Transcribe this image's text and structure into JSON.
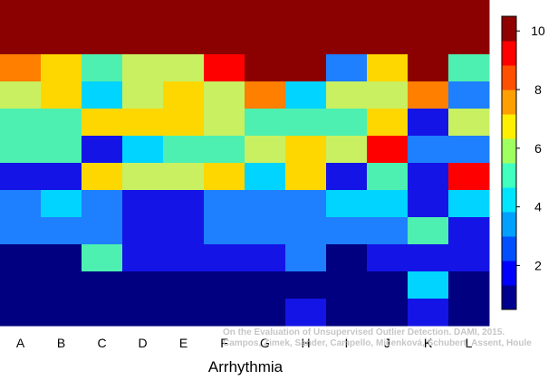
{
  "chart_data": {
    "type": "heatmap",
    "title": "",
    "xlabel": "Arrhythmia",
    "ylabel": "",
    "categories": [
      "A",
      "B",
      "C",
      "D",
      "E",
      "F",
      "G",
      "H",
      "I",
      "J",
      "K",
      "L"
    ],
    "row_count": 12,
    "colorbar": {
      "ticks": [
        2,
        4,
        6,
        8,
        10
      ],
      "range": [
        0.5,
        10.5
      ],
      "colors": [
        "#00008f",
        "#0000ff",
        "#0050ff",
        "#00a0ff",
        "#00e5ff",
        "#40ffbf",
        "#a0ff60",
        "#ffef00",
        "#ff9f00",
        "#ff5000",
        "#ff0000",
        "#8f0000"
      ]
    },
    "cell_colors": [
      [
        "#8b0000",
        "#8b0000",
        "#8b0000",
        "#8b0000",
        "#8b0000",
        "#8b0000",
        "#8b0000",
        "#8b0000",
        "#8b0000",
        "#8b0000",
        "#8b0000",
        "#8b0000"
      ],
      [
        "#8b0000",
        "#8b0000",
        "#8b0000",
        "#8b0000",
        "#8b0000",
        "#8b0000",
        "#8b0000",
        "#8b0000",
        "#8b0000",
        "#8b0000",
        "#8b0000",
        "#8b0000"
      ],
      [
        "#ff7f00",
        "#ffd700",
        "#4df0b0",
        "#c8f060",
        "#c8f060",
        "#ff0000",
        "#8b0000",
        "#8b0000",
        "#1e7fff",
        "#ffd700",
        "#8b0000",
        "#4df0b0"
      ],
      [
        "#c8f060",
        "#ffd700",
        "#00d4ff",
        "#c8f060",
        "#ffd700",
        "#c8f060",
        "#ff7f00",
        "#00d4ff",
        "#c8f060",
        "#c8f060",
        "#ff7f00",
        "#1e7fff"
      ],
      [
        "#4df0b0",
        "#4df0b0",
        "#ffd700",
        "#ffd700",
        "#ffd700",
        "#c8f060",
        "#4df0b0",
        "#4df0b0",
        "#4df0b0",
        "#ffd700",
        "#1414e6",
        "#c8f060"
      ],
      [
        "#4df0b0",
        "#4df0b0",
        "#1414e6",
        "#00d4ff",
        "#4df0b0",
        "#4df0b0",
        "#c8f060",
        "#ffd700",
        "#c8f060",
        "#ff0000",
        "#1e7fff",
        "#1e7fff"
      ],
      [
        "#1414e6",
        "#1414e6",
        "#ffd700",
        "#c8f060",
        "#c8f060",
        "#ffd700",
        "#00d4ff",
        "#ffd700",
        "#1414e6",
        "#4df0b0",
        "#1414e6",
        "#ff0000"
      ],
      [
        "#1e7fff",
        "#00d4ff",
        "#1e7fff",
        "#1414e6",
        "#1414e6",
        "#1e7fff",
        "#1e7fff",
        "#1e7fff",
        "#00d4ff",
        "#00d4ff",
        "#1414e6",
        "#00d4ff"
      ],
      [
        "#1e7fff",
        "#1e7fff",
        "#1e7fff",
        "#1414e6",
        "#1414e6",
        "#1e7fff",
        "#1e7fff",
        "#1e7fff",
        "#1e7fff",
        "#1e7fff",
        "#4df0b0",
        "#1414e6"
      ],
      [
        "#000080",
        "#000080",
        "#4df0b0",
        "#1414e6",
        "#1414e6",
        "#1414e6",
        "#1414e6",
        "#1e7fff",
        "#000080",
        "#1414e6",
        "#1414e6",
        "#1414e6"
      ],
      [
        "#000080",
        "#000080",
        "#000080",
        "#000080",
        "#000080",
        "#000080",
        "#000080",
        "#000080",
        "#000080",
        "#000080",
        "#00d4ff",
        "#000080"
      ],
      [
        "#000080",
        "#000080",
        "#000080",
        "#000080",
        "#000080",
        "#000080",
        "#000080",
        "#1414e6",
        "#000080",
        "#000080",
        "#1414e6",
        "#000080"
      ]
    ]
  },
  "watermark": {
    "line1": "On the Evaluation of Unsupervised Outlier Detection. DAMI, 2015.",
    "line2": "Campos, Zimek, Sander, Campello, Micenková, Schubert, Assent, Houle"
  }
}
